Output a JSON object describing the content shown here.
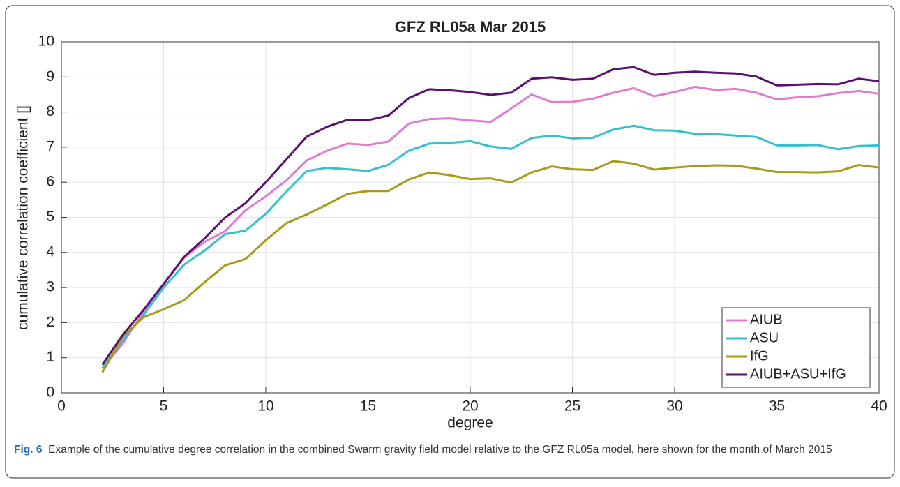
{
  "chart_data": {
    "type": "line",
    "title": "GFZ RL05a Mar 2015",
    "xlabel": "degree",
    "ylabel": "cumulative correlation coefficient []",
    "x": [
      2,
      3,
      4,
      5,
      6,
      7,
      8,
      9,
      10,
      11,
      12,
      13,
      14,
      15,
      16,
      17,
      18,
      19,
      20,
      21,
      22,
      23,
      24,
      25,
      26,
      27,
      28,
      29,
      30,
      31,
      32,
      33,
      34,
      35,
      36,
      37,
      38,
      39,
      40
    ],
    "series": [
      {
        "name": "AIUB",
        "color": "#e07ccf",
        "values": [
          0.7,
          1.4,
          2.3,
          3.1,
          3.85,
          4.3,
          4.6,
          5.2,
          5.6,
          6.05,
          6.62,
          6.9,
          7.1,
          7.06,
          7.16,
          7.67,
          7.8,
          7.82,
          7.76,
          7.72,
          8.1,
          8.5,
          8.28,
          8.29,
          8.38,
          8.55,
          8.68,
          8.45,
          8.57,
          8.72,
          8.63,
          8.66,
          8.55,
          8.36,
          8.42,
          8.45,
          8.54,
          8.6,
          8.52
        ]
      },
      {
        "name": "ASU",
        "color": "#33c1cc",
        "values": [
          0.7,
          1.5,
          2.2,
          3.0,
          3.65,
          4.05,
          4.52,
          4.62,
          5.1,
          5.73,
          6.32,
          6.41,
          6.37,
          6.32,
          6.5,
          6.9,
          7.1,
          7.12,
          7.17,
          7.02,
          6.95,
          7.26,
          7.33,
          7.25,
          7.27,
          7.5,
          7.61,
          7.48,
          7.47,
          7.38,
          7.37,
          7.33,
          7.29,
          7.05,
          7.05,
          7.06,
          6.94,
          7.03,
          7.05
        ]
      },
      {
        "name": "IfG",
        "color": "#a89a18",
        "values": [
          0.58,
          1.6,
          2.15,
          2.38,
          2.64,
          3.15,
          3.63,
          3.81,
          4.35,
          4.83,
          5.08,
          5.37,
          5.67,
          5.75,
          5.75,
          6.08,
          6.28,
          6.2,
          6.09,
          6.11,
          5.99,
          6.28,
          6.45,
          6.37,
          6.35,
          6.6,
          6.53,
          6.36,
          6.42,
          6.46,
          6.48,
          6.47,
          6.39,
          6.29,
          6.29,
          6.28,
          6.31,
          6.49,
          6.42
        ]
      },
      {
        "name": "AIUB+ASU+IfG",
        "color": "#5b0f6e",
        "values": [
          0.8,
          1.65,
          2.35,
          3.1,
          3.87,
          4.4,
          4.99,
          5.4,
          6.0,
          6.65,
          7.3,
          7.58,
          7.78,
          7.77,
          7.9,
          8.4,
          8.65,
          8.62,
          8.57,
          8.49,
          8.55,
          8.95,
          8.99,
          8.92,
          8.95,
          9.22,
          9.28,
          9.06,
          9.12,
          9.15,
          9.12,
          9.1,
          9.01,
          8.76,
          8.78,
          8.8,
          8.79,
          8.95,
          8.88
        ]
      }
    ],
    "xlim": [
      0,
      40
    ],
    "xticks": [
      0,
      5,
      10,
      15,
      20,
      25,
      30,
      35,
      40
    ],
    "ylim": [
      0,
      10
    ],
    "yticks": [
      0,
      1,
      2,
      3,
      4,
      5,
      6,
      7,
      8,
      9,
      10
    ],
    "grid": true,
    "legend": "lower right"
  },
  "caption": {
    "label": "Fig. 6",
    "text": "Example of the cumulative degree correlation in the combined Swarm gravity field model relative to the GFZ RL05a model, here shown for the month of March 2015"
  }
}
